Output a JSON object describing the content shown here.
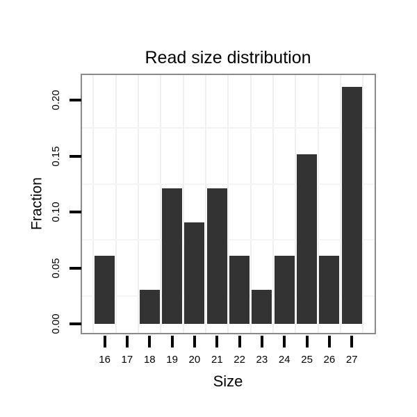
{
  "chart_data": {
    "type": "bar",
    "title": "Read size distribution",
    "xlabel": "Size",
    "ylabel": "Fraction",
    "categories": [
      "16",
      "17",
      "18",
      "19",
      "20",
      "21",
      "22",
      "23",
      "24",
      "25",
      "26",
      "27"
    ],
    "values": [
      0.0606,
      0,
      0.0303,
      0.1212,
      0.0909,
      0.1212,
      0.0606,
      0.0303,
      0.0606,
      0.1515,
      0.0606,
      0.2121
    ],
    "yticks": [
      "0.00",
      "0.05",
      "0.10",
      "0.15",
      "0.20"
    ],
    "ylim": [
      -0.009,
      0.223
    ],
    "minor_y_gridlines": [
      0.025,
      0.075,
      0.125,
      0.175
    ],
    "grid": "faint minor gridlines only, vertical lines at category boundaries",
    "legend": "none",
    "colors": {
      "bar": "#333333",
      "panel_border": "#8a8a8a",
      "grid_vertical": "#efefef",
      "grid_horizontal": "#f4f4f4",
      "tick": "#000000",
      "text": "#000000",
      "background": "#ffffff"
    }
  }
}
